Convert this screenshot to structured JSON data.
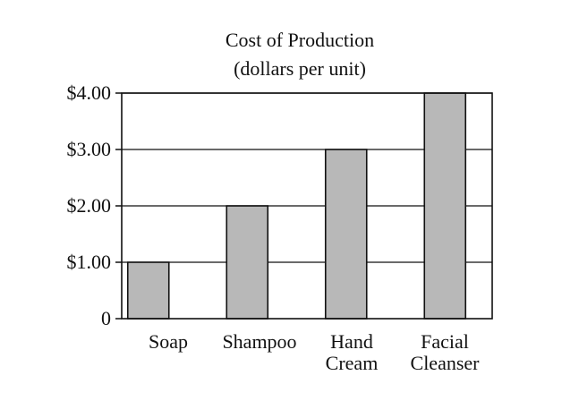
{
  "chart_data": {
    "type": "bar",
    "title": "Cost of Production",
    "subtitle": "(dollars per unit)",
    "categories": [
      [
        "Soap"
      ],
      [
        "Shampoo"
      ],
      [
        "Hand",
        "Cream"
      ],
      [
        "Facial",
        "Cleanser"
      ]
    ],
    "values": [
      1.0,
      2.0,
      3.0,
      4.0
    ],
    "ylim": [
      0,
      4
    ],
    "yticks": [
      {
        "value": 0,
        "label": "0"
      },
      {
        "value": 1,
        "label": "$1.00"
      },
      {
        "value": 2,
        "label": "$2.00"
      },
      {
        "value": 3,
        "label": "$3.00"
      },
      {
        "value": 4,
        "label": "$4.00"
      }
    ],
    "grid": true,
    "colors": {
      "bar_fill": "#b8b8b8",
      "bar_stroke": "#111111",
      "axis": "#111111",
      "grid": "#111111"
    }
  }
}
